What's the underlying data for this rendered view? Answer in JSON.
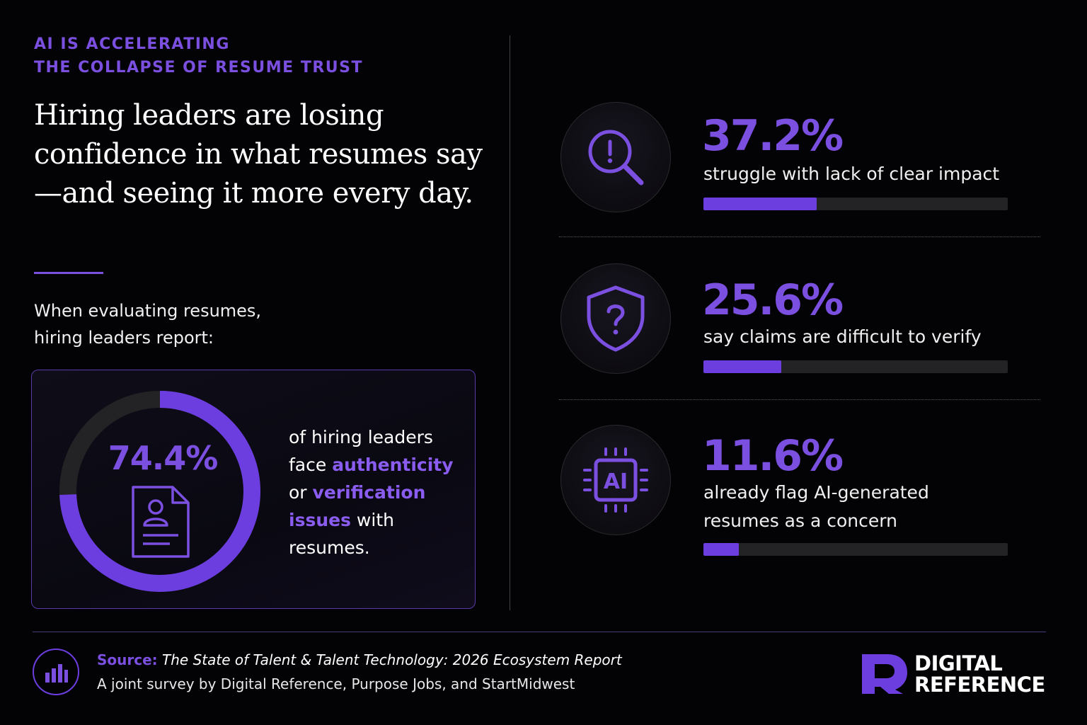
{
  "eyebrow": {
    "line1": "AI IS ACCELERATING",
    "line2": "THE COLLAPSE OF RESUME TRUST"
  },
  "headline": "Hiring leaders are losing confidence in what resumes say—and seeing it more every day.",
  "intro": {
    "line1": "When evaluating resumes,",
    "line2": "hiring leaders report:"
  },
  "main_stat": {
    "value": "74.4%",
    "percent": 74.4,
    "text_1": "of hiring leaders",
    "text_2": "face",
    "highlight_1": "authenticity",
    "text_3": "or",
    "highlight_2": "verification",
    "highlight_3": "issues",
    "text_4": "with",
    "text_5": "resumes."
  },
  "stats": [
    {
      "value": "37.2%",
      "percent": 37.2,
      "label": "struggle with lack of clear impact",
      "icon": "magnifier-alert-icon"
    },
    {
      "value": "25.6%",
      "percent": 25.6,
      "label": "say claims are difficult to verify",
      "icon": "shield-question-icon"
    },
    {
      "value": "11.6%",
      "percent": 11.6,
      "label_line1": "already flag AI-generated",
      "label_line2": "resumes as a concern",
      "icon": "ai-chip-icon",
      "chip_text": "AI"
    }
  ],
  "footer": {
    "source_label": "Source:",
    "source_title": "The State of Talent & Talent Technology: 2026 Ecosystem Report",
    "source_sub": "A joint survey by Digital Reference, Purpose Jobs, and StartMidwest"
  },
  "brand": {
    "line1": "DIGITAL",
    "line2": "REFERENCE"
  },
  "colors": {
    "accent": "#7b4fe0",
    "bar_fill": "#6c3ee0",
    "bar_track": "#232325",
    "background": "#030305"
  }
}
